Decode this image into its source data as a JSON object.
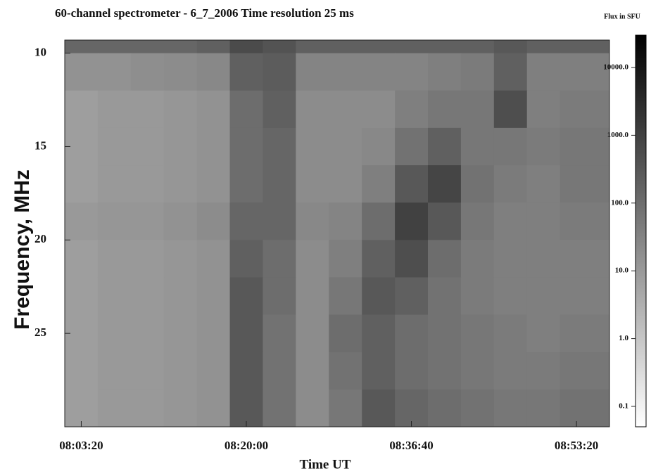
{
  "chart_data": {
    "type": "heatmap",
    "title": "60-channel spectrometer -  6_7_2006  Time resolution  25 ms",
    "xlabel": "Time UT",
    "ylabel": "Frequency, MHz",
    "xlim": [
      28900,
      32200
    ],
    "xticks": [
      {
        "value": 29000,
        "label": "08:03:20"
      },
      {
        "value": 30000,
        "label": "08:20:00"
      },
      {
        "value": 31000,
        "label": "08:36:40"
      },
      {
        "value": 32000,
        "label": "08:53:20"
      }
    ],
    "ylim": [
      9.3,
      30
    ],
    "y_inverted": true,
    "yticks": [
      10,
      15,
      20,
      25
    ],
    "x_edges": [
      28900,
      29100,
      29300,
      29500,
      29700,
      29900,
      30100,
      30300,
      30500,
      30700,
      30900,
      31100,
      31300,
      31500,
      31700,
      31900,
      32200
    ],
    "y_edges": [
      9.3,
      10,
      12,
      14,
      16,
      18,
      20,
      22,
      24,
      26,
      28,
      30
    ],
    "values": [
      [
        150,
        150,
        150,
        150,
        200,
        600,
        400,
        200,
        200,
        200,
        200,
        200,
        200,
        300,
        200,
        200
      ],
      [
        15,
        15,
        18,
        20,
        25,
        200,
        250,
        30,
        30,
        30,
        30,
        40,
        50,
        200,
        40,
        40
      ],
      [
        8,
        10,
        10,
        12,
        15,
        100,
        200,
        20,
        20,
        20,
        40,
        60,
        60,
        500,
        40,
        50
      ],
      [
        8,
        10,
        10,
        12,
        15,
        100,
        150,
        20,
        20,
        25,
        80,
        200,
        60,
        60,
        50,
        60
      ],
      [
        8,
        10,
        10,
        12,
        15,
        100,
        150,
        20,
        20,
        40,
        300,
        800,
        80,
        50,
        40,
        60
      ],
      [
        10,
        12,
        12,
        15,
        20,
        150,
        150,
        25,
        30,
        100,
        1000,
        300,
        60,
        40,
        40,
        50
      ],
      [
        8,
        10,
        10,
        12,
        15,
        200,
        100,
        20,
        40,
        200,
        500,
        100,
        50,
        40,
        40,
        40
      ],
      [
        8,
        10,
        10,
        12,
        15,
        300,
        100,
        20,
        60,
        300,
        200,
        80,
        50,
        40,
        40,
        40
      ],
      [
        8,
        10,
        10,
        12,
        15,
        300,
        80,
        20,
        100,
        200,
        100,
        80,
        60,
        50,
        40,
        50
      ],
      [
        8,
        10,
        10,
        12,
        15,
        300,
        80,
        20,
        80,
        200,
        100,
        80,
        60,
        50,
        50,
        60
      ],
      [
        8,
        10,
        10,
        12,
        15,
        300,
        80,
        20,
        60,
        300,
        150,
        100,
        80,
        60,
        60,
        80
      ]
    ],
    "colormap": [
      "#ffffff",
      "#000000"
    ],
    "colorbar": {
      "label": "Flux in SFU",
      "scale": "log",
      "lim": [
        0.05,
        30000
      ],
      "ticks": [
        {
          "value": 0.1,
          "label": "0.1"
        },
        {
          "value": 1,
          "label": "1.0"
        },
        {
          "value": 10,
          "label": "10.0"
        },
        {
          "value": 100,
          "label": "100.0"
        },
        {
          "value": 1000,
          "label": "1000.0"
        },
        {
          "value": 10000,
          "label": "10000.0"
        }
      ]
    }
  }
}
